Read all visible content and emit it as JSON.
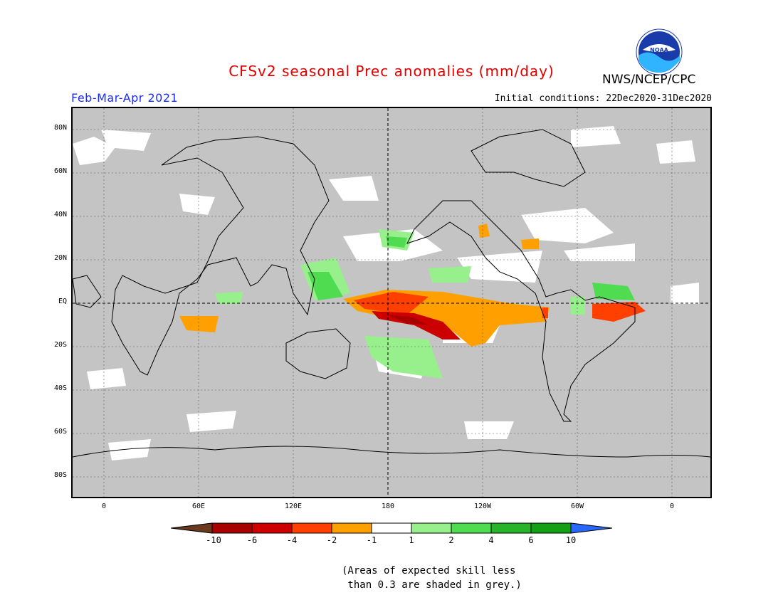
{
  "title": "CFSv2 seasonal Prec anomalies (mm/day)",
  "agency": "NWS/NCEP/CPC",
  "logo_text": "NOAA",
  "period": "Feb-Mar-Apr 2021",
  "initial_conditions": "Initial conditions: 22Dec2020-31Dec2020",
  "map": {
    "lat_labels": [
      "80N",
      "60N",
      "40N",
      "20N",
      "EQ",
      "20S",
      "40S",
      "60S",
      "80S"
    ],
    "lat_values": [
      80,
      60,
      40,
      20,
      0,
      -20,
      -40,
      -60,
      -80
    ],
    "lon_labels": [
      "0",
      "60E",
      "120E",
      "180",
      "120W",
      "60W",
      "0"
    ],
    "lon_values": [
      0,
      60,
      120,
      180,
      240,
      300,
      360
    ],
    "lon_range": [
      -20,
      380
    ],
    "lat_range": [
      -90,
      90
    ],
    "grey_meaning": "low skill"
  },
  "colorbar": {
    "labels": [
      "-10",
      "-6",
      "-4",
      "-2",
      "-1",
      "1",
      "2",
      "4",
      "6",
      "10"
    ],
    "colors": [
      "#6b3a1e",
      "#a80000",
      "#cc0000",
      "#ff4000",
      "#ffa000",
      "#ffffff",
      "#98f08c",
      "#50dc50",
      "#28b428",
      "#14a014",
      "#2868ff"
    ]
  },
  "note_line1": "(Areas of expected skill less",
  "note_line2": " than 0.3 are shaded in grey.)"
}
